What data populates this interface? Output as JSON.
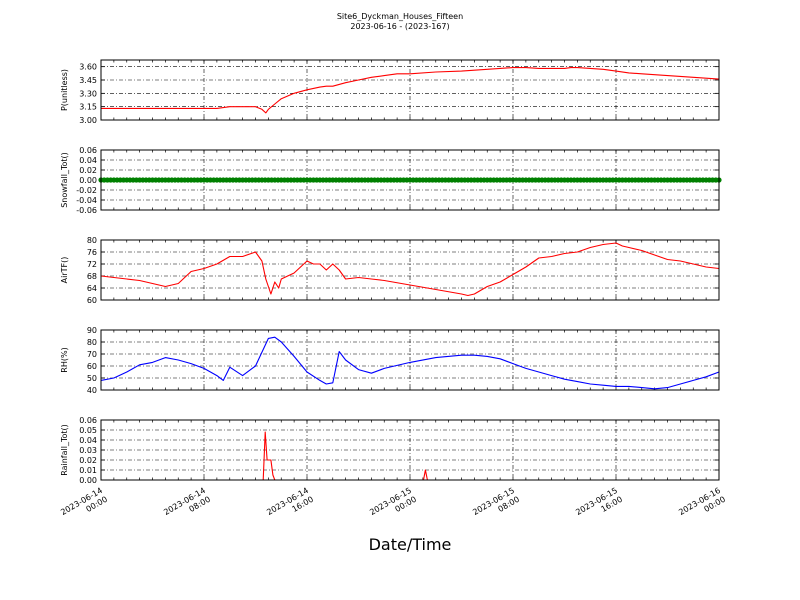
{
  "chart_data": {
    "type": "line",
    "title": "Site6_Dyckman_Houses_Fifteen",
    "subtitle": "2023-06-16 - (2023-167)",
    "xlabel": "Date/Time",
    "x_ticks": [
      {
        "t": 0,
        "label": [
          "2023-06-14",
          "00:00"
        ]
      },
      {
        "t": 8,
        "label": [
          "2023-06-14",
          "08:00"
        ]
      },
      {
        "t": 16,
        "label": [
          "2023-06-14",
          "16:00"
        ]
      },
      {
        "t": 24,
        "label": [
          "2023-06-15",
          "00:00"
        ]
      },
      {
        "t": 32,
        "label": [
          "2023-06-15",
          "08:00"
        ]
      },
      {
        "t": 40,
        "label": [
          "2023-06-15",
          "16:00"
        ]
      },
      {
        "t": 48,
        "label": [
          "2023-06-16",
          "00:00"
        ]
      }
    ],
    "xlim": [
      0,
      48
    ],
    "grid": true,
    "panels": [
      {
        "ylabel": "P(unitless)",
        "ylim": [
          3.0,
          3.675
        ],
        "yticks": [
          "3.00",
          "3.15",
          "3.30",
          "3.45",
          "3.60"
        ],
        "ytick_values": [
          3.0,
          3.15,
          3.3,
          3.45,
          3.6
        ],
        "color": "#ff0000",
        "style": "line",
        "x": [
          0,
          1,
          2,
          3,
          4,
          5,
          6,
          7,
          8,
          9,
          10,
          11,
          12,
          12.5,
          12.8,
          13,
          13.5,
          14,
          15,
          16,
          17,
          17.5,
          18,
          19,
          20,
          21,
          22,
          23,
          24,
          26,
          28,
          29,
          30,
          31,
          32,
          33,
          34,
          35,
          36,
          36.5,
          37,
          38,
          39,
          40,
          41,
          42,
          43,
          44,
          45,
          46,
          47,
          48
        ],
        "y": [
          3.13,
          3.13,
          3.13,
          3.13,
          3.13,
          3.13,
          3.13,
          3.13,
          3.13,
          3.13,
          3.15,
          3.15,
          3.15,
          3.12,
          3.08,
          3.12,
          3.18,
          3.24,
          3.3,
          3.34,
          3.37,
          3.38,
          3.38,
          3.42,
          3.45,
          3.48,
          3.5,
          3.52,
          3.52,
          3.54,
          3.55,
          3.56,
          3.57,
          3.58,
          3.59,
          3.59,
          3.58,
          3.58,
          3.58,
          3.59,
          3.59,
          3.58,
          3.57,
          3.55,
          3.53,
          3.52,
          3.51,
          3.5,
          3.49,
          3.48,
          3.47,
          3.46
        ]
      },
      {
        "ylabel": "Snowfall_Tot()",
        "ylim": [
          -0.06,
          0.06
        ],
        "yticks": [
          "-0.06",
          "-0.04",
          "-0.02",
          "0.00",
          "0.02",
          "0.04",
          "0.06"
        ],
        "ytick_values": [
          -0.06,
          -0.04,
          -0.02,
          0.0,
          0.02,
          0.04,
          0.06
        ],
        "color": "#008000",
        "style": "dots",
        "x": [
          0,
          48
        ],
        "y": [
          0,
          0
        ]
      },
      {
        "ylabel": "AirTF()",
        "ylim": [
          60,
          80
        ],
        "yticks": [
          "60",
          "64",
          "68",
          "72",
          "76",
          "80"
        ],
        "ytick_values": [
          60,
          64,
          68,
          72,
          76,
          80
        ],
        "color": "#ff0000",
        "style": "line",
        "x": [
          0,
          1,
          2,
          3,
          4,
          5,
          6,
          7,
          8,
          9,
          10,
          11,
          12,
          12.5,
          12.8,
          13.2,
          13.5,
          13.8,
          14,
          15,
          16,
          16.5,
          17,
          17.5,
          18,
          18.5,
          19,
          20,
          21,
          22,
          24,
          26,
          28,
          28.5,
          29,
          30,
          31,
          32,
          33,
          34,
          35,
          36,
          37,
          38,
          39,
          40,
          40.5,
          41,
          42,
          43,
          44,
          45,
          46,
          47,
          48
        ],
        "y": [
          68,
          67.5,
          67,
          66.5,
          65.5,
          64.5,
          65.5,
          69.5,
          70.5,
          72,
          74.5,
          74.5,
          76,
          73,
          67,
          62,
          66,
          64,
          67,
          69,
          73,
          72,
          72,
          70,
          72,
          70,
          67,
          67.5,
          67,
          66.5,
          65,
          63.5,
          62,
          61.5,
          62,
          64.5,
          66,
          68.5,
          71,
          74,
          74.5,
          75.5,
          76,
          77.5,
          78.5,
          79,
          78,
          77.5,
          76.5,
          75,
          73.5,
          73,
          72,
          71,
          70.5
        ]
      },
      {
        "ylabel": "RH(%)",
        "ylim": [
          40,
          90
        ],
        "yticks": [
          "40",
          "50",
          "60",
          "70",
          "80",
          "90"
        ],
        "ytick_values": [
          40,
          50,
          60,
          70,
          80,
          90
        ],
        "color": "#0000ff",
        "style": "line",
        "x": [
          0,
          1,
          2,
          3,
          4,
          5,
          6,
          7,
          8,
          9,
          9.5,
          10,
          11,
          12,
          13,
          13.5,
          14,
          15,
          16,
          17,
          17.5,
          18,
          18.5,
          19,
          20,
          21,
          22,
          24,
          26,
          28,
          29,
          30,
          31,
          32,
          33,
          34,
          35,
          36,
          37,
          38,
          39,
          40,
          41,
          42,
          43,
          44,
          45,
          46,
          47,
          48
        ],
        "y": [
          48,
          50,
          55,
          61,
          63,
          67,
          65,
          62,
          58,
          52,
          48,
          59,
          52,
          60,
          83,
          84,
          80,
          68,
          55,
          48,
          45,
          46,
          72,
          65,
          57,
          54,
          58,
          63,
          67,
          69,
          69,
          68,
          66,
          62,
          58,
          55,
          52,
          49,
          47,
          45,
          44,
          43,
          43,
          42,
          41,
          42,
          45,
          48,
          51,
          55
        ]
      },
      {
        "ylabel": "Rainfall_Tot()",
        "ylim": [
          0,
          0.06
        ],
        "yticks": [
          "0.00",
          "0.01",
          "0.02",
          "0.03",
          "0.04",
          "0.05",
          "0.06"
        ],
        "ytick_values": [
          0.0,
          0.01,
          0.02,
          0.03,
          0.04,
          0.05,
          0.06
        ],
        "color": "#ff0000",
        "style": "line",
        "x": [
          0,
          12.6,
          12.75,
          12.9,
          13.05,
          13.2,
          13.35,
          13.5,
          13.65,
          25.05,
          25.2,
          25.35,
          48
        ],
        "y": [
          0,
          0,
          0.048,
          0.02,
          0.02,
          0.02,
          0.005,
          0,
          0,
          0,
          0.01,
          0,
          0
        ]
      }
    ]
  }
}
